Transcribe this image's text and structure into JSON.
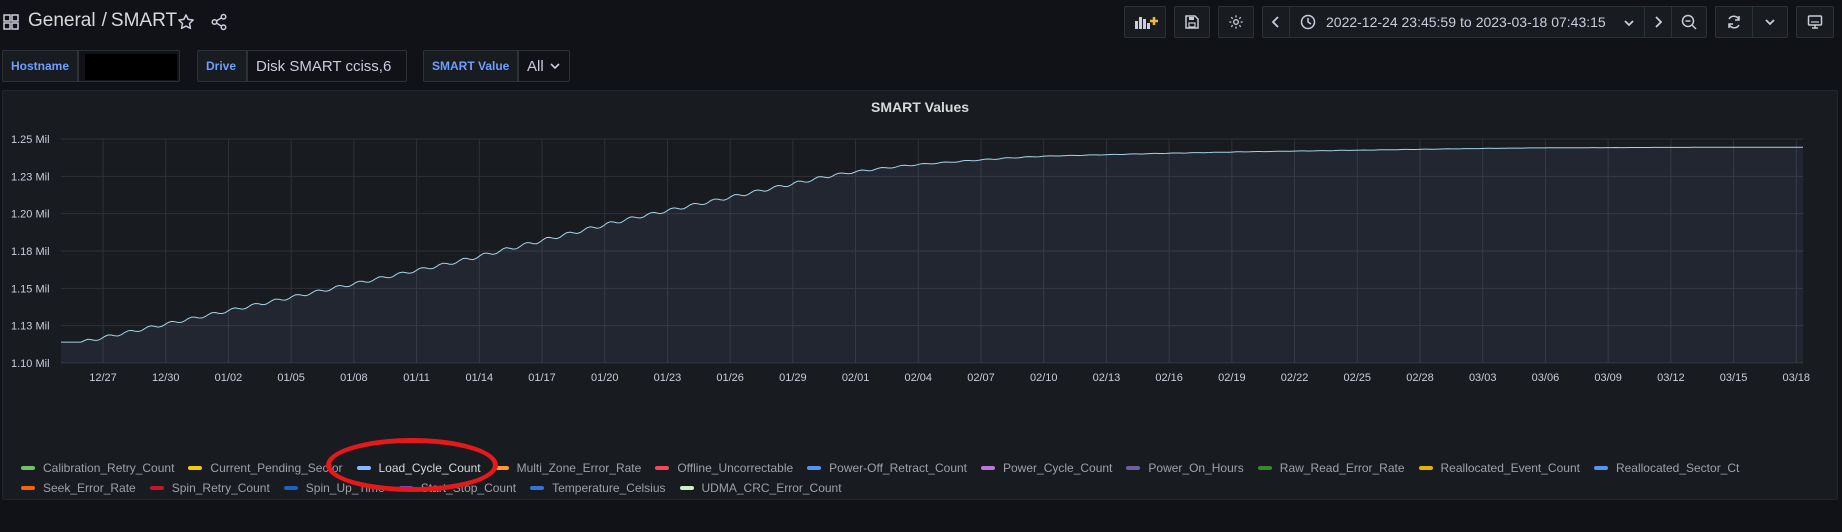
{
  "header": {
    "folder": "General",
    "separator": "/",
    "dashboard": "SMART",
    "time_from": "2022-12-24 23:45:59",
    "time_to_word": "to",
    "time_to": "2023-03-18 07:43:15"
  },
  "variables": [
    {
      "label": "Hostname",
      "value": ""
    },
    {
      "label": "Drive",
      "value": "Disk SMART cciss,6"
    },
    {
      "label": "SMART Value",
      "value": "All"
    }
  ],
  "panel": {
    "title": "SMART Values"
  },
  "chart_data": {
    "type": "area",
    "title": "SMART Values",
    "y_ticks": [
      "1.10 Mil",
      "1.13 Mil",
      "1.15 Mil",
      "1.18 Mil",
      "1.20 Mil",
      "1.23 Mil",
      "1.25 Mil"
    ],
    "ylim": [
      1100000,
      1250000
    ],
    "x_ticks": [
      "12/27",
      "12/30",
      "01/02",
      "01/05",
      "01/08",
      "01/11",
      "01/14",
      "01/17",
      "01/20",
      "01/23",
      "01/26",
      "01/29",
      "02/01",
      "02/04",
      "02/07",
      "02/10",
      "02/13",
      "02/16",
      "02/19",
      "02/22",
      "02/25",
      "02/28",
      "03/03",
      "03/06",
      "03/09",
      "03/12",
      "03/15",
      "03/18"
    ],
    "series": [
      {
        "name": "Load_Cycle_Count",
        "color": "#8ab8ff",
        "x": [
          "12/24",
          "12/26",
          "12/28",
          "12/30",
          "01/01",
          "01/03",
          "01/05",
          "01/07",
          "01/09",
          "01/11",
          "01/13",
          "01/15",
          "01/17",
          "01/19",
          "01/21",
          "01/23",
          "01/25",
          "01/27",
          "01/29",
          "01/31",
          "02/02",
          "02/04",
          "02/06",
          "02/08",
          "02/10",
          "02/13",
          "02/16",
          "02/20",
          "02/25",
          "03/01",
          "03/05",
          "03/10",
          "03/15",
          "03/18"
        ],
        "values": [
          1114000,
          1114000,
          1120000,
          1126000,
          1132000,
          1138000,
          1144000,
          1150000,
          1156000,
          1162000,
          1168000,
          1175000,
          1182000,
          1189000,
          1196000,
          1202000,
          1208000,
          1214000,
          1220000,
          1226000,
          1230000,
          1233000,
          1235000,
          1237000,
          1238500,
          1239500,
          1240500,
          1241500,
          1242500,
          1243300,
          1244000,
          1244300,
          1244500,
          1244500
        ]
      }
    ],
    "legend": [
      {
        "name": "Calibration_Retry_Count",
        "color": "#73bf69"
      },
      {
        "name": "Current_Pending_Sector",
        "color": "#f2cc0c"
      },
      {
        "name": "Load_Cycle_Count",
        "color": "#8ab8ff"
      },
      {
        "name": "Multi_Zone_Error_Rate",
        "color": "#ff9830"
      },
      {
        "name": "Offline_Uncorrectable",
        "color": "#f2495c"
      },
      {
        "name": "Power-Off_Retract_Count",
        "color": "#5794f2"
      },
      {
        "name": "Power_Cycle_Count",
        "color": "#b877d9"
      },
      {
        "name": "Power_On_Hours",
        "color": "#705da0"
      },
      {
        "name": "Raw_Read_Error_Rate",
        "color": "#37872d"
      },
      {
        "name": "Reallocated_Event_Count",
        "color": "#e0b400"
      },
      {
        "name": "Reallocated_Sector_Ct",
        "color": "#5794f2"
      },
      {
        "name": "Seek_Error_Rate",
        "color": "#fa6400"
      },
      {
        "name": "Spin_Retry_Count",
        "color": "#c4162a"
      },
      {
        "name": "Spin_Up_Time",
        "color": "#1f60c4"
      },
      {
        "name": "Start_Stop_Count",
        "color": "#8f3bb8"
      },
      {
        "name": "Temperature_Celsius",
        "color": "#3274d9"
      },
      {
        "name": "UDMA_CRC_Error_Count",
        "color": "#c8f2c2"
      }
    ]
  }
}
